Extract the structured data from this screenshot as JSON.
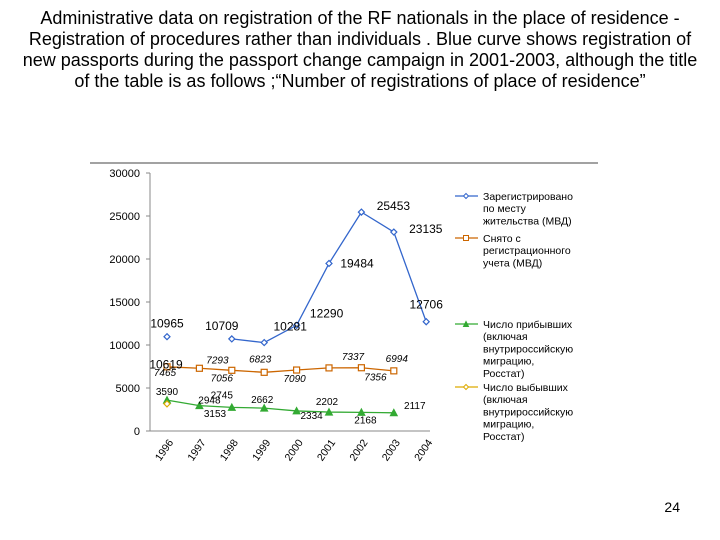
{
  "slide": {
    "title": "Administrative data on registration  of the RF nationals in the place of residence -  Registration of procedures rather than individuals . Blue curve shows registration of new passports during the passport change campaign in 2001-2003, although  the title of the table  is as follows ;“Number of  registrations of place of residence”",
    "page_number": "24"
  },
  "chart_data": {
    "type": "line",
    "title": "",
    "xlabel": "",
    "ylabel": "",
    "x": [
      "1996",
      "1997",
      "1998",
      "1999",
      "2000",
      "2001",
      "2002",
      "2003",
      "2004"
    ],
    "ylim": [
      0,
      30000
    ],
    "yticks": [
      "0",
      "5000",
      "10000",
      "15000",
      "20000",
      "25000",
      "30000"
    ],
    "grid": false,
    "legend_position": "right",
    "series": [
      {
        "name": "Зарегистрировано по месту жительства (МВД)",
        "legend_lines": [
          "Зарегистрировано",
          "по месту",
          "жительства (МВД)"
        ],
        "color": "#3366cc",
        "marker": "diamond",
        "values": [
          10965,
          null,
          10709,
          10281,
          12290,
          19484,
          25453,
          23135,
          12706
        ],
        "labels": [
          "10965",
          "",
          "10709",
          "10281",
          "12290",
          "19484",
          "25453",
          "23135",
          "12706"
        ]
      },
      {
        "name": "Снято с регистрационного учета (МВД)",
        "legend_lines": [
          "Снято  с",
          "регистрационного",
          "учета (МВД)"
        ],
        "color": "#cc6600",
        "marker": "square",
        "values": [
          7465,
          7293,
          7056,
          6823,
          7090,
          7337,
          7356,
          6994,
          null
        ],
        "labels": [
          "7465",
          "7293",
          "7056",
          "6823",
          "7090",
          "7337",
          "7356",
          "6994",
          ""
        ]
      },
      {
        "name": "Число прибывших (включая внутрироссийскую миграцию, Росстат)",
        "legend_lines": [
          "Число прибывших",
          "(включая",
          "внутрироссийскую",
          "миграцию,",
          "Росстат)"
        ],
        "color": "#33aa33",
        "marker": "triangle",
        "values": [
          3590,
          2948,
          2745,
          2662,
          2334,
          2202,
          2168,
          2117,
          null
        ],
        "labels": [
          "3590",
          "2948",
          "2745",
          "2662",
          "2334",
          "2202",
          "2168",
          "2117",
          ""
        ]
      },
      {
        "name": "Число выбывших (включая внутрироссийскую миграцию, Росстат)",
        "legend_lines": [
          "Число выбывших",
          "(включая",
          "внутрироссийскую",
          "миграцию,",
          "Росстат)"
        ],
        "color": "#ddaa00",
        "marker": "diamond",
        "values": [
          3153,
          null,
          null,
          null,
          null,
          null,
          null,
          null,
          null
        ],
        "labels": [
          "3153",
          "",
          "",
          "",
          "",
          "",
          "",
          "",
          ""
        ]
      }
    ],
    "extra_labels": [
      {
        "text": "10619",
        "series": 0,
        "index": 0
      }
    ]
  }
}
